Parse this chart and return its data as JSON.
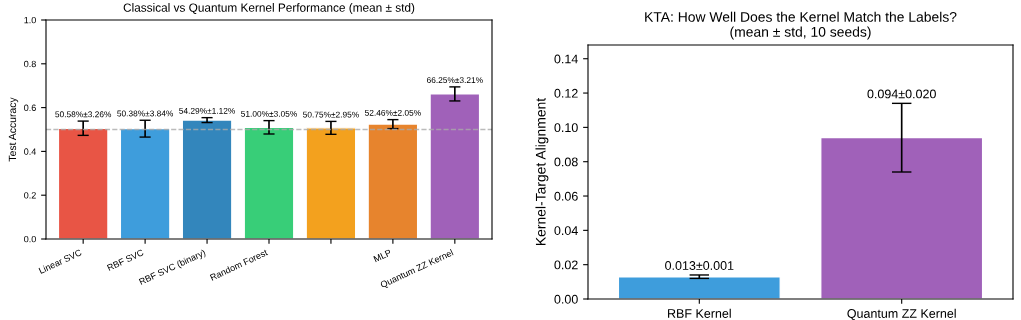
{
  "chart_data": [
    {
      "type": "bar",
      "title": "Classical vs Quantum Kernel Performance (mean ± std)",
      "ylabel": "Test Accuracy",
      "categories": [
        "Linear SVC",
        "RBF SVC",
        "RBF SVC (binary)",
        "Random Forest",
        null,
        "MLP",
        "Quantum ZZ Kernel"
      ],
      "values": [
        0.5058,
        0.5038,
        0.5429,
        0.51,
        0.5075,
        0.5246,
        0.6625
      ],
      "errors": [
        0.0326,
        0.0384,
        0.0112,
        0.0305,
        0.0295,
        0.0205,
        0.0321
      ],
      "colors": [
        "#e74c3c",
        "#3498db",
        "#2980b9",
        "#2ecc71",
        "#f39c12",
        "#e67e22",
        "#9b59b6"
      ],
      "value_labels": [
        "50.58%±3.26%",
        "50.38%±3.84%",
        "54.29%±1.12%",
        "51.00%±3.05%",
        "50.75%±2.95%",
        "52.46%±2.05%",
        "66.25%±3.21%"
      ],
      "ylim": [
        0,
        1.0
      ],
      "yticks": [
        {
          "value": 0,
          "label": "0.0"
        },
        0.2,
        0.4,
        0.6,
        0.8,
        {
          "value": 1.0,
          "label": "1.0"
        }
      ],
      "ref_lines": [
        {
          "axis": "y",
          "value": 0.5,
          "color": "#aaaaaa",
          "line_style": "dashed"
        }
      ],
      "grid": false
    },
    {
      "type": "bar",
      "title": "KTA: How Well Does the Kernel Match the Labels?\n(mean ± std, 10 seeds)",
      "ylabel": "Kernel-Target Alignment",
      "categories": [
        "RBF Kernel",
        "Quantum ZZ Kernel"
      ],
      "values": [
        0.013,
        0.094
      ],
      "errors": [
        0.001,
        0.02
      ],
      "colors": [
        "#3498db",
        "#9b59b6"
      ],
      "value_labels": [
        "0.013±0.001",
        "0.094±0.020"
      ],
      "ylim": [
        0,
        0.148
      ],
      "yticks": [
        {
          "value": 0,
          "label": "0.00"
        },
        {
          "value": 0.02,
          "label": "0.02"
        },
        {
          "value": 0.04,
          "label": "0.04"
        },
        {
          "value": 0.06,
          "label": "0.06"
        },
        {
          "value": 0.08,
          "label": "0.08"
        },
        {
          "value": 0.1,
          "label": "0.10"
        },
        {
          "value": 0.12,
          "label": "0.12"
        },
        {
          "value": 0.14,
          "label": "0.14"
        }
      ],
      "grid": false
    }
  ]
}
